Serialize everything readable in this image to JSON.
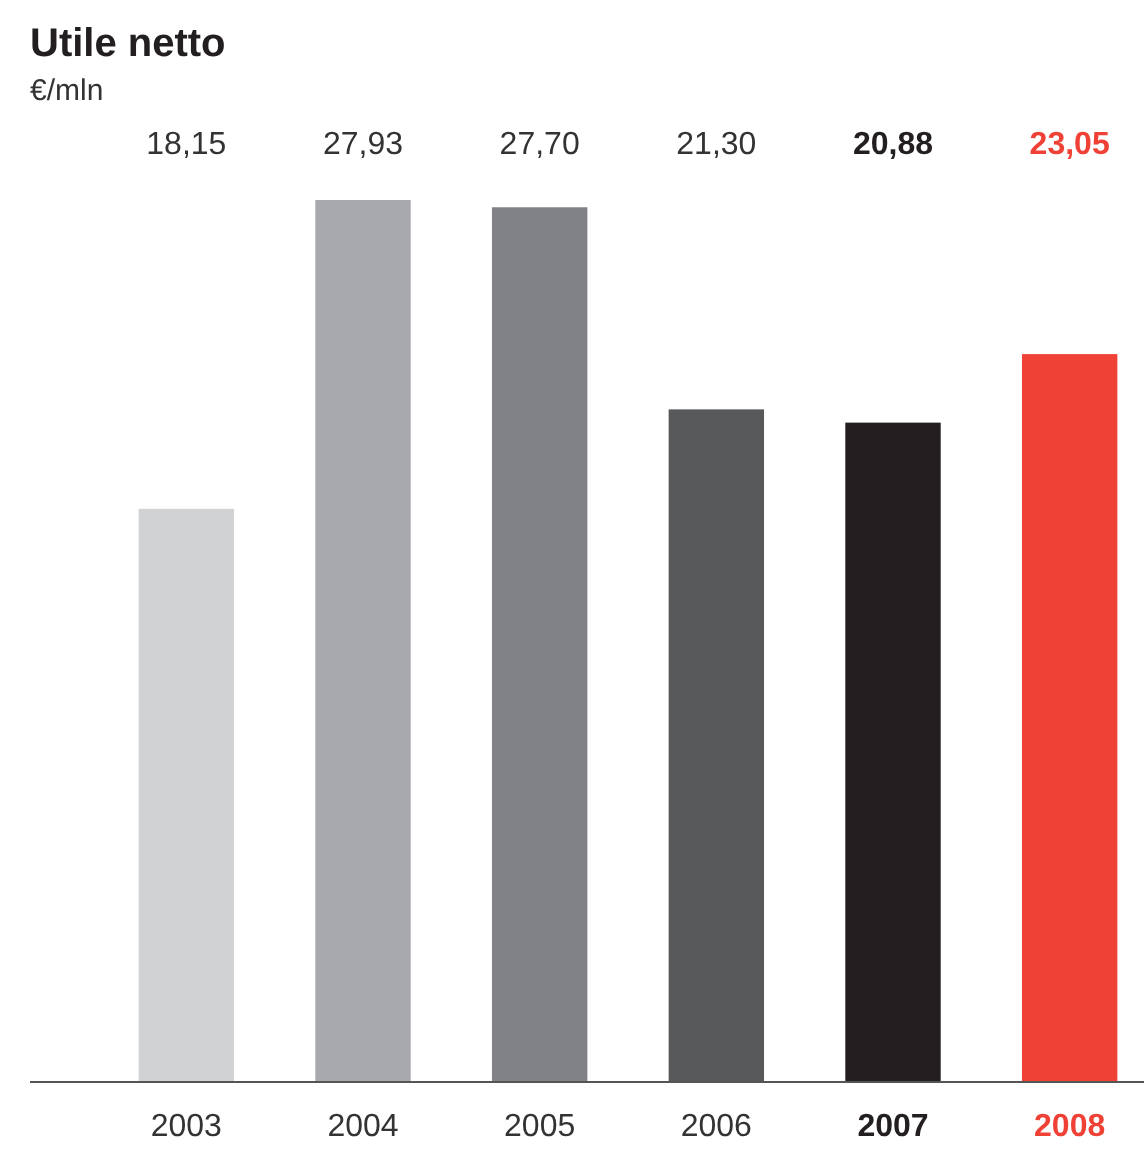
{
  "chart_data": {
    "type": "bar",
    "title": "Utile netto",
    "subtitle": "€/mln",
    "categories": [
      "2003",
      "2004",
      "2005",
      "2006",
      "2007",
      "2008"
    ],
    "values": [
      18.15,
      27.93,
      27.7,
      21.3,
      20.88,
      23.05
    ],
    "value_labels": [
      "18,15",
      "27,93",
      "27,70",
      "21,30",
      "20,88",
      "23,05"
    ],
    "colors": [
      "#d1d2d4",
      "#a7a9ac",
      "#808285",
      "#58595b",
      "#231f20",
      "#ef4136"
    ],
    "relative": false
  }
}
